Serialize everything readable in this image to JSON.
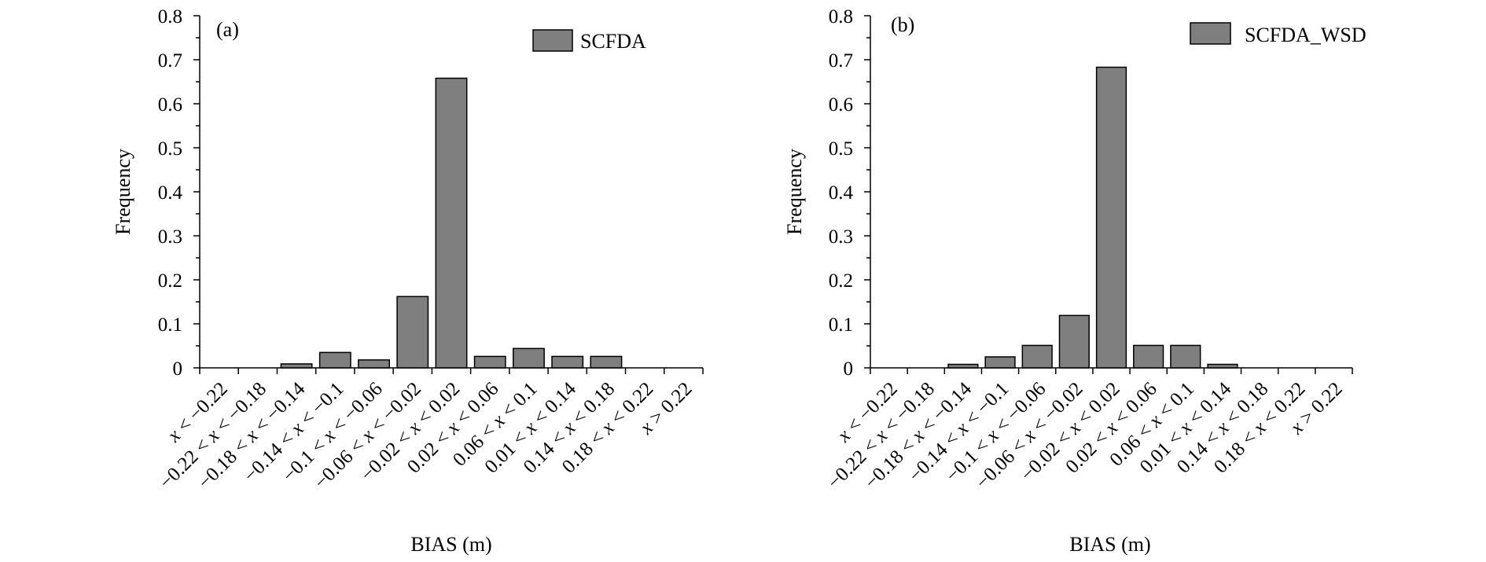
{
  "chart_data": [
    {
      "type": "bar",
      "panel_label": "(a)",
      "title": "",
      "xlabel": "BIAS (m)",
      "ylabel": "Frequency",
      "ylim": [
        0,
        0.8
      ],
      "yticks": [
        "0",
        "0.1",
        "0.2",
        "0.3",
        "0.4",
        "0.5",
        "0.6",
        "0.7",
        "0.8"
      ],
      "legend": "top-right",
      "bar_color": "#7f7f7f",
      "categories": [
        "x < −0.22",
        "−0.22 < x < −0.18",
        "−0.18 < x < −0.14",
        "−0.14 < x < −0.1",
        "−0.1 < x < −0.06",
        "−0.06 < x < −0.02",
        "−0.02 < x < 0.02",
        "0.02 < x < 0.06",
        "0.06 < x < 0.1",
        "0.01 < x < 0.14",
        "0.14 < x < 0.18",
        "0.18 < x < 0.22",
        "x > 0.22"
      ],
      "series": [
        {
          "name": "SCFDA",
          "values": [
            0,
            0,
            0.009,
            0.035,
            0.018,
            0.162,
            0.658,
            0.026,
            0.044,
            0.026,
            0.026,
            0,
            0
          ]
        }
      ]
    },
    {
      "type": "bar",
      "panel_label": "(b)",
      "title": "",
      "xlabel": "BIAS (m)",
      "ylabel": "Frequency",
      "ylim": [
        0,
        0.8
      ],
      "yticks": [
        "0",
        "0.1",
        "0.2",
        "0.3",
        "0.4",
        "0.5",
        "0.6",
        "0.7",
        "0.8"
      ],
      "legend": "top-right",
      "bar_color": "#7f7f7f",
      "categories": [
        "x < −0.22",
        "−0.22 < x < −0.18",
        "−0.18 < x < −0.14",
        "−0.14 < x < −0.1",
        "−0.1 < x < −0.06",
        "−0.06 < x < −0.02",
        "−0.02 < x < 0.02",
        "0.02 < x < 0.06",
        "0.06 < x < 0.1",
        "0.01 < x < 0.14",
        "0.14 < x < 0.18",
        "0.18 < x < 0.22",
        "x > 0.22"
      ],
      "series": [
        {
          "name": "SCFDA_WSD",
          "values": [
            0,
            0,
            0.008,
            0.025,
            0.051,
            0.119,
            0.683,
            0.051,
            0.051,
            0.008,
            0,
            0,
            0
          ]
        }
      ]
    }
  ]
}
